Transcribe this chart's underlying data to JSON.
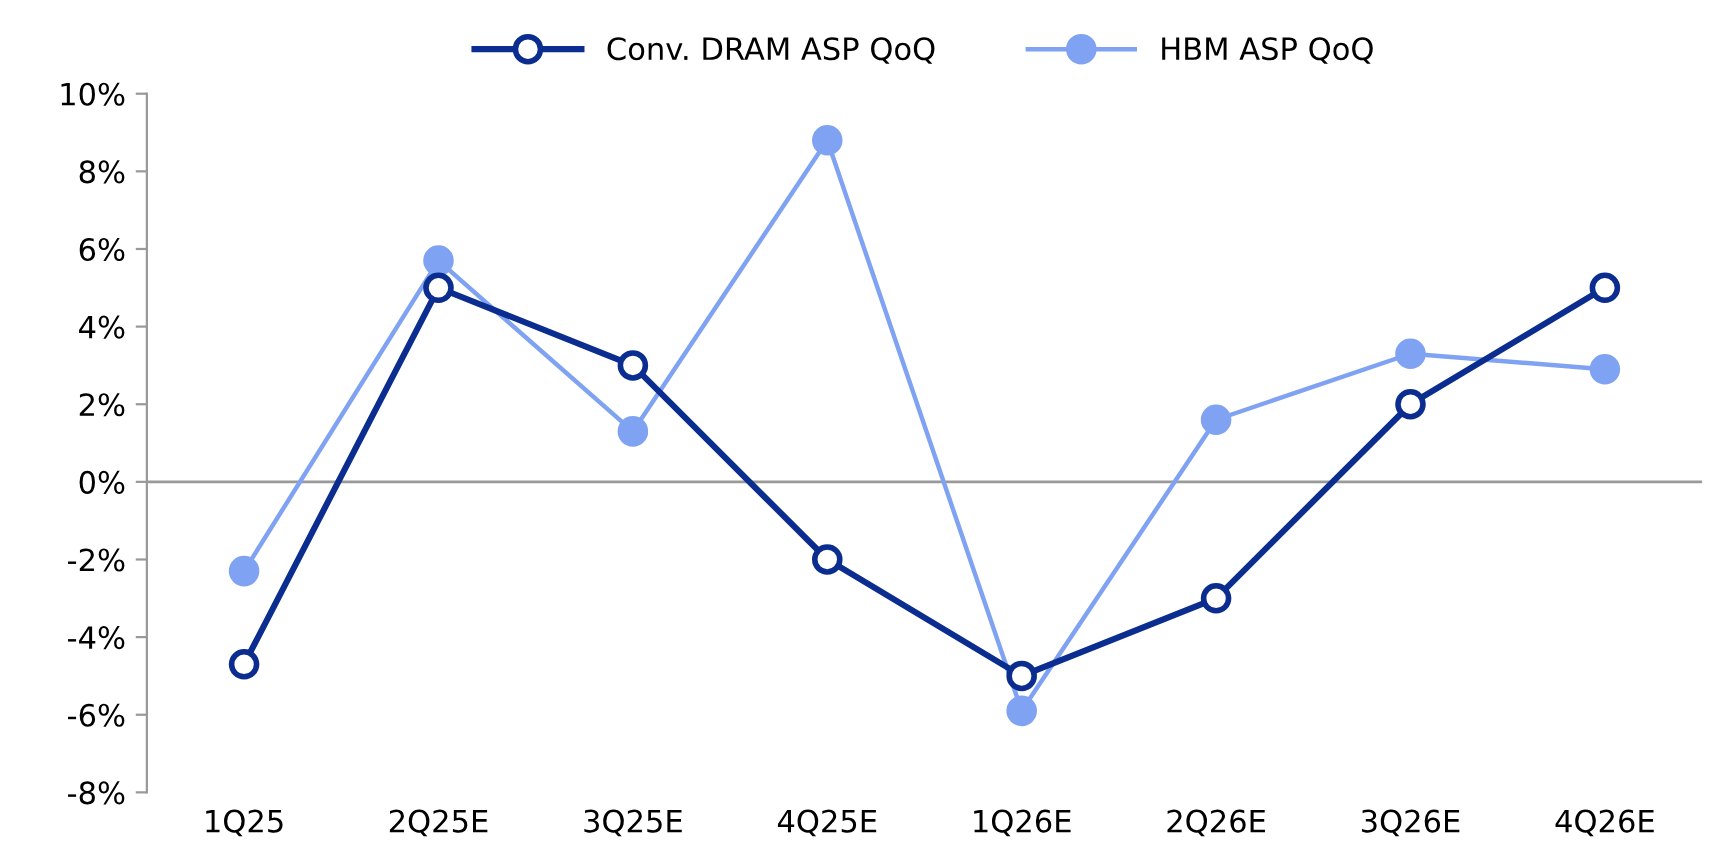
{
  "chart_data": {
    "type": "line",
    "categories": [
      "1Q25",
      "2Q25E",
      "3Q25E",
      "4Q25E",
      "1Q26E",
      "2Q26E",
      "3Q26E",
      "4Q26E"
    ],
    "series": [
      {
        "name": "Conv. DRAM ASP QoQ",
        "color": "#0b2d8f",
        "values": [
          -4.7,
          5.0,
          3.0,
          -2.0,
          -5.0,
          -3.0,
          2.0,
          5.0
        ]
      },
      {
        "name": "HBM ASP QoQ",
        "color": "#7fa3f2",
        "values": [
          -2.3,
          5.7,
          1.3,
          8.8,
          -5.9,
          1.6,
          3.3,
          2.9
        ]
      }
    ],
    "ylim": [
      -8,
      10
    ],
    "yticks": [
      {
        "value": -8,
        "label": "-8%"
      },
      {
        "value": -6,
        "label": "-6%"
      },
      {
        "value": -4,
        "label": "-4%"
      },
      {
        "value": -2,
        "label": "-2%"
      },
      {
        "value": 0,
        "label": "0%"
      },
      {
        "value": 2,
        "label": "2%"
      },
      {
        "value": 4,
        "label": "4%"
      },
      {
        "value": 6,
        "label": "6%"
      },
      {
        "value": 8,
        "label": "8%"
      },
      {
        "value": 10,
        "label": "10%"
      }
    ],
    "ref_lines": [
      {
        "axis": "y",
        "value": 0,
        "color": "#999999"
      }
    ],
    "marker": "circle",
    "line_style": "solid",
    "grid": false,
    "legend": "top"
  }
}
